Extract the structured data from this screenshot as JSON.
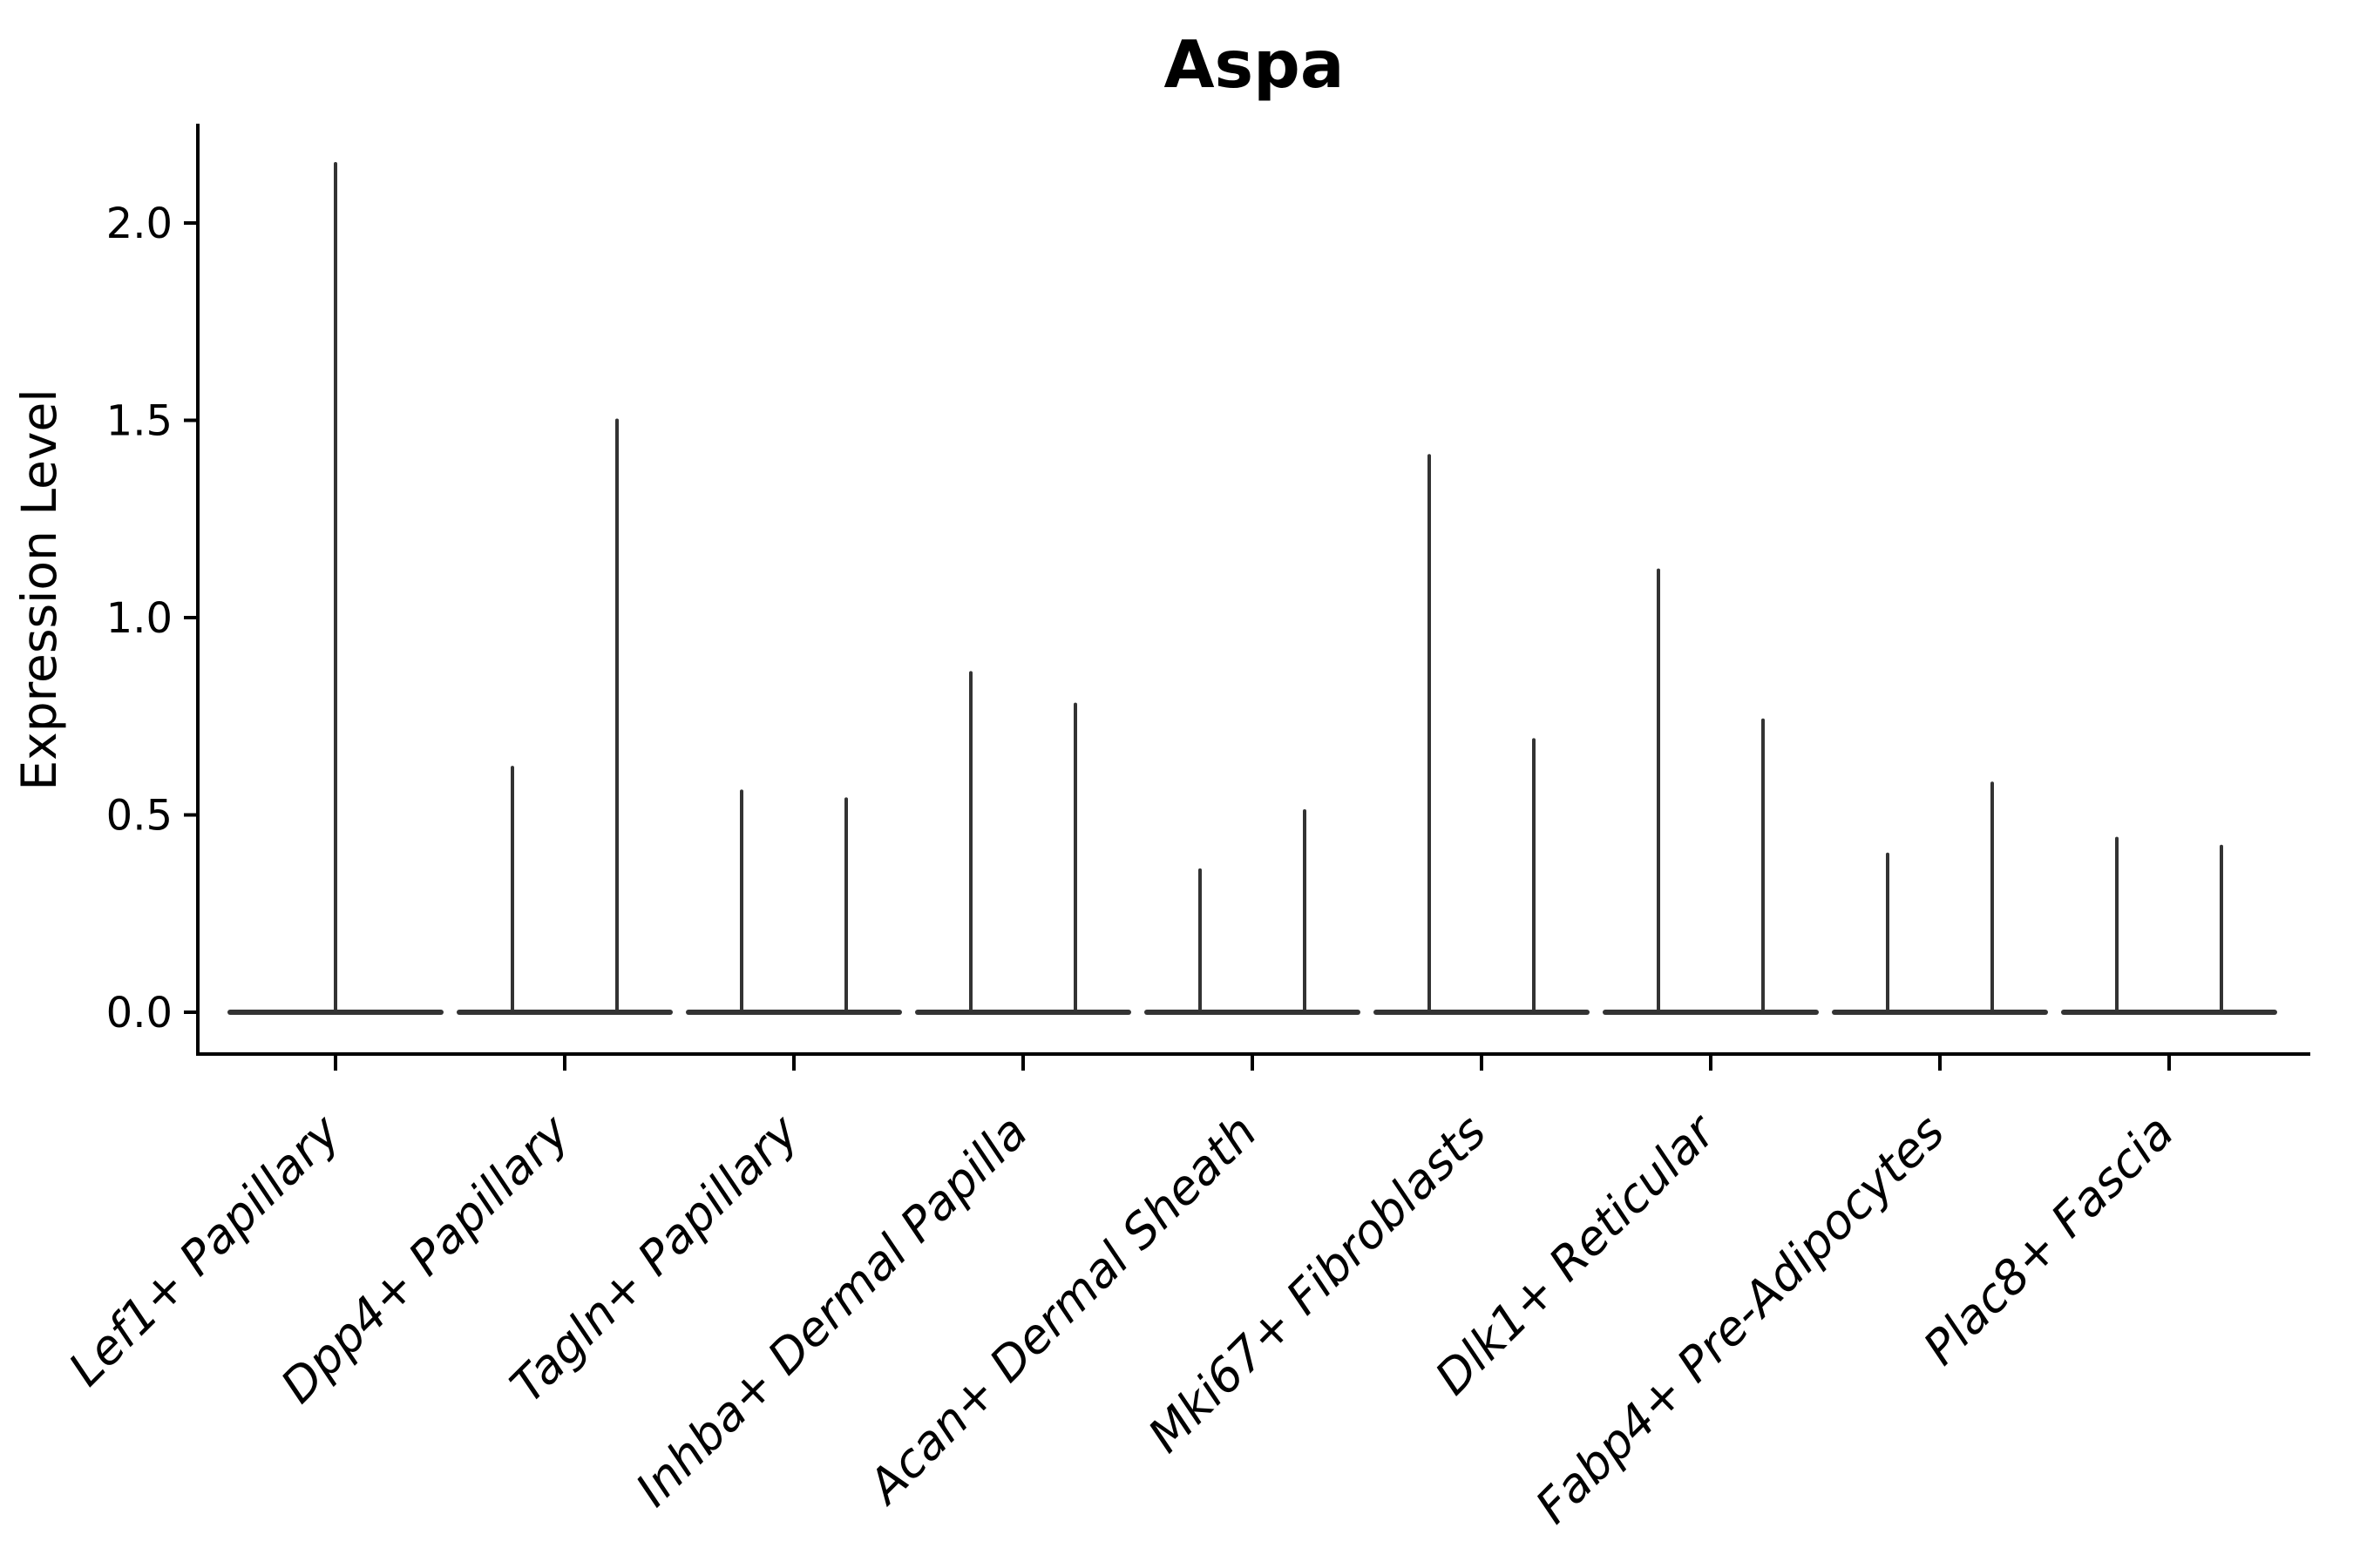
{
  "chart_data": {
    "type": "violin",
    "title": "Aspa",
    "ylabel": "Expression Level",
    "xlabel": "",
    "ytick_labels": [
      "0.0",
      "0.5",
      "1.0",
      "1.5",
      "2.0"
    ],
    "ytick_values": [
      0.0,
      0.5,
      1.0,
      1.5,
      2.0
    ],
    "ylim": [
      -0.1,
      2.25
    ],
    "x_tick_rotation_deg": 45,
    "x_tick_style": "italic",
    "grid": false,
    "legend_position": "none",
    "baseline_value": 0.0,
    "violins": [
      {
        "category": "Lef1+ Papillary",
        "max_values": [
          2.15
        ]
      },
      {
        "category": "Dpp4+ Papillary",
        "max_values": [
          0.62,
          1.5
        ]
      },
      {
        "category": "Tagln+ Papillary",
        "max_values": [
          0.56,
          0.54
        ]
      },
      {
        "category": "Inhba+ Dermal Papilla",
        "max_values": [
          0.86,
          0.78
        ]
      },
      {
        "category": "Acan+ Dermal Sheath",
        "max_values": [
          0.36,
          0.51
        ]
      },
      {
        "category": "Mki67+ Fibroblasts",
        "max_values": [
          1.41,
          0.69
        ]
      },
      {
        "category": "Dlk1+ Reticular",
        "max_values": [
          1.12,
          0.74
        ]
      },
      {
        "category": "Fabp4+ Pre-Adipocytes",
        "max_values": [
          0.4,
          0.58
        ]
      },
      {
        "category": "Plac8+ Fascia",
        "max_values": [
          0.44,
          0.42
        ]
      }
    ],
    "colors": {
      "violin": "#333333",
      "axis": "#000000",
      "text": "#000000",
      "background": "#ffffff"
    }
  }
}
